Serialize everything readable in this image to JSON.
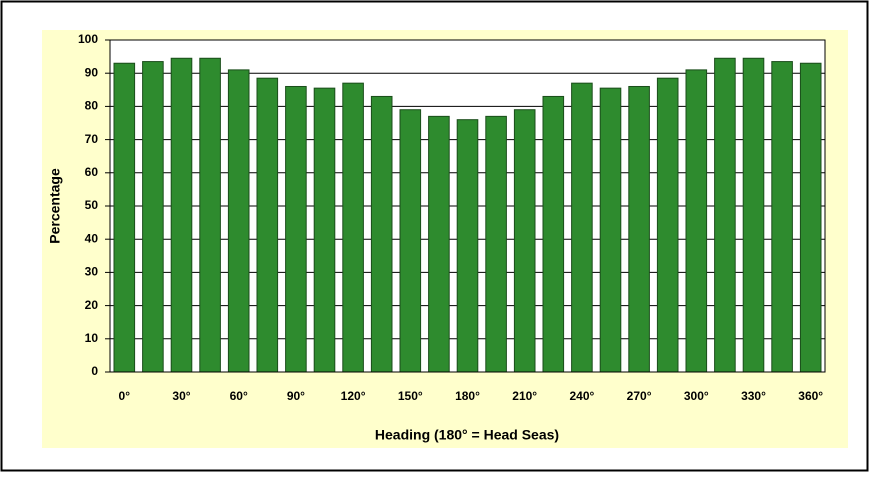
{
  "chart_data": {
    "type": "bar",
    "x_label": "Heading (180° = Head Seas)",
    "y_label": "Percentage",
    "categories": [
      "0°",
      null,
      "30°",
      null,
      "60°",
      null,
      "90°",
      null,
      "120°",
      null,
      "150°",
      null,
      "180°",
      null,
      "210°",
      null,
      "240°",
      null,
      "270°",
      null,
      "300°",
      null,
      "330°",
      null,
      "360°"
    ],
    "values": [
      93,
      93.5,
      94.5,
      94.5,
      91,
      88.5,
      86,
      85.5,
      87,
      83,
      79,
      77,
      76,
      77,
      79,
      83,
      87,
      85.5,
      86,
      88.5,
      91,
      94.5,
      94.5,
      93.5,
      93
    ],
    "color": "#2e8b2e",
    "ylim": [
      0,
      100
    ],
    "yticks": [
      0,
      10,
      20,
      30,
      40,
      50,
      60,
      70,
      80,
      90,
      100
    ],
    "grid": true
  }
}
